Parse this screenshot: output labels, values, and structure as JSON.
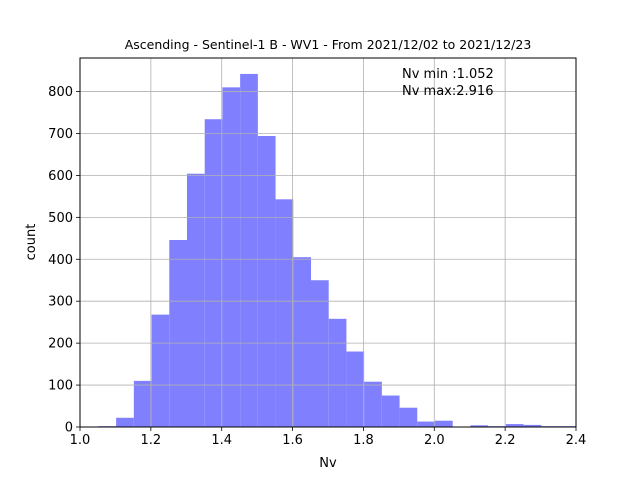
{
  "chart_data": {
    "type": "bar",
    "title": "Ascending - Sentinel-1 B - WV1 - From 2021/12/02 to 2021/12/23",
    "xlabel": "Nv",
    "ylabel": "count",
    "xlim": [
      1.0,
      2.4
    ],
    "ylim": [
      0,
      880
    ],
    "xticks": [
      "1.0",
      "1.2",
      "1.4",
      "1.6",
      "1.8",
      "2.0",
      "2.2",
      "2.4"
    ],
    "yticks": [
      "0",
      "100",
      "200",
      "300",
      "400",
      "500",
      "600",
      "700",
      "800"
    ],
    "grid": true,
    "bar_color": "#8080ff",
    "bins": [
      {
        "x0": 1.052,
        "x1": 1.102,
        "count": 2
      },
      {
        "x0": 1.102,
        "x1": 1.152,
        "count": 22
      },
      {
        "x0": 1.152,
        "x1": 1.202,
        "count": 110
      },
      {
        "x0": 1.202,
        "x1": 1.252,
        "count": 268
      },
      {
        "x0": 1.252,
        "x1": 1.302,
        "count": 446
      },
      {
        "x0": 1.302,
        "x1": 1.352,
        "count": 604
      },
      {
        "x0": 1.352,
        "x1": 1.402,
        "count": 734
      },
      {
        "x0": 1.402,
        "x1": 1.452,
        "count": 810
      },
      {
        "x0": 1.452,
        "x1": 1.502,
        "count": 842
      },
      {
        "x0": 1.502,
        "x1": 1.552,
        "count": 694
      },
      {
        "x0": 1.552,
        "x1": 1.602,
        "count": 543
      },
      {
        "x0": 1.602,
        "x1": 1.652,
        "count": 405
      },
      {
        "x0": 1.652,
        "x1": 1.702,
        "count": 350
      },
      {
        "x0": 1.702,
        "x1": 1.752,
        "count": 258
      },
      {
        "x0": 1.752,
        "x1": 1.802,
        "count": 180
      },
      {
        "x0": 1.802,
        "x1": 1.852,
        "count": 108
      },
      {
        "x0": 1.852,
        "x1": 1.902,
        "count": 75
      },
      {
        "x0": 1.902,
        "x1": 1.952,
        "count": 46
      },
      {
        "x0": 1.952,
        "x1": 2.002,
        "count": 13
      },
      {
        "x0": 2.002,
        "x1": 2.052,
        "count": 15
      },
      {
        "x0": 2.052,
        "x1": 2.102,
        "count": 1
      },
      {
        "x0": 2.102,
        "x1": 2.152,
        "count": 4
      },
      {
        "x0": 2.152,
        "x1": 2.202,
        "count": 2
      },
      {
        "x0": 2.202,
        "x1": 2.252,
        "count": 7
      },
      {
        "x0": 2.252,
        "x1": 2.302,
        "count": 5
      },
      {
        "x0": 2.302,
        "x1": 2.352,
        "count": 2
      },
      {
        "x0": 2.352,
        "x1": 2.402,
        "count": 2
      }
    ],
    "annotations": [
      "Nv min :1.052",
      "Nv max:2.916"
    ]
  }
}
